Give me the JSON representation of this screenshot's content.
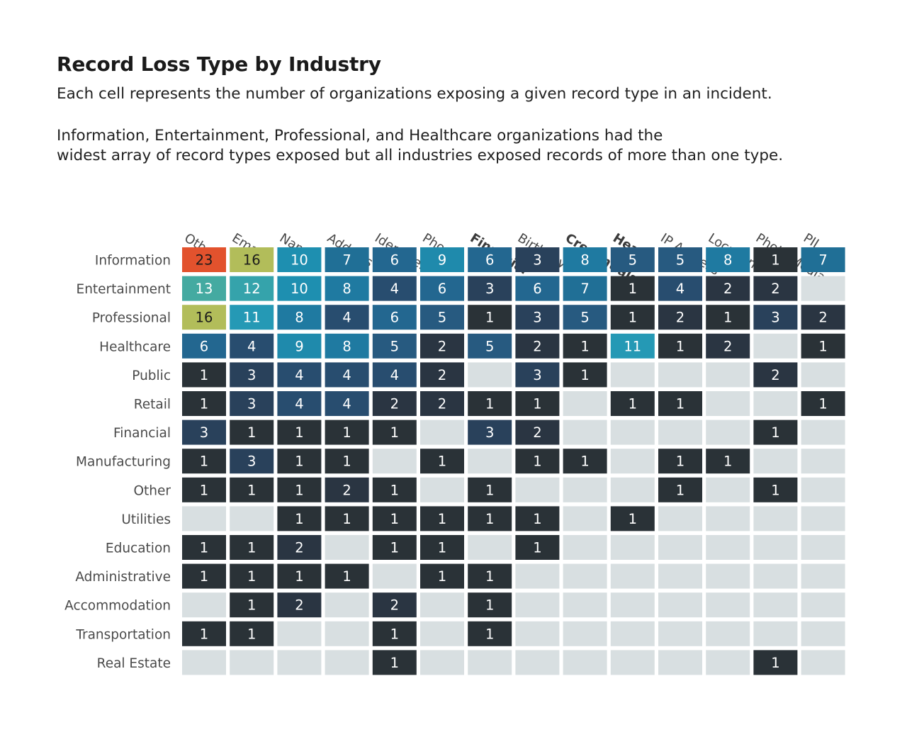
{
  "title": "Record Loss Type by Industry",
  "subtitle": "Each cell represents the number of organizations exposing a given record type in an incident.",
  "note": [
    "Information, Entertainment, Professional, and Healthcare organizations had the",
    "widest array of record types exposed but all industries exposed records of more than one type."
  ],
  "chart_data": {
    "type": "heatmap",
    "columns": [
      "Other",
      "Email",
      "Name",
      "Address",
      "Identifier",
      "Phone",
      "Financial",
      "Birthday",
      "Credentials",
      "Health",
      "IP Address",
      "Location",
      "Photo/Media",
      "PII"
    ],
    "bold_columns": [
      "Financial",
      "Credentials",
      "Health"
    ],
    "rows": [
      "Information",
      "Entertainment",
      "Professional",
      "Healthcare",
      "Public",
      "Retail",
      "Financial",
      "Manufacturing",
      "Other",
      "Utilities",
      "Education",
      "Administrative",
      "Accommodation",
      "Transportation",
      "Real Estate"
    ],
    "values": [
      [
        23,
        16,
        10,
        7,
        6,
        9,
        6,
        3,
        8,
        5,
        5,
        8,
        1,
        7
      ],
      [
        13,
        12,
        10,
        8,
        4,
        6,
        3,
        6,
        7,
        1,
        4,
        2,
        2,
        null
      ],
      [
        16,
        11,
        8,
        4,
        6,
        5,
        1,
        3,
        5,
        1,
        2,
        1,
        3,
        2
      ],
      [
        6,
        4,
        9,
        8,
        5,
        2,
        5,
        2,
        1,
        11,
        1,
        2,
        null,
        1
      ],
      [
        1,
        3,
        4,
        4,
        4,
        2,
        null,
        3,
        1,
        null,
        null,
        null,
        2,
        null
      ],
      [
        1,
        3,
        4,
        4,
        2,
        2,
        1,
        1,
        null,
        1,
        1,
        null,
        null,
        1
      ],
      [
        3,
        1,
        1,
        1,
        1,
        null,
        3,
        2,
        null,
        null,
        null,
        null,
        1,
        null
      ],
      [
        1,
        3,
        1,
        1,
        null,
        1,
        null,
        1,
        1,
        null,
        1,
        1,
        null,
        null
      ],
      [
        1,
        1,
        1,
        2,
        1,
        null,
        1,
        null,
        null,
        null,
        1,
        null,
        1,
        null
      ],
      [
        null,
        null,
        1,
        1,
        1,
        1,
        1,
        1,
        null,
        1,
        null,
        null,
        null,
        null
      ],
      [
        1,
        1,
        2,
        null,
        1,
        1,
        null,
        1,
        null,
        null,
        null,
        null,
        null,
        null
      ],
      [
        1,
        1,
        1,
        1,
        null,
        1,
        1,
        null,
        null,
        null,
        null,
        null,
        null,
        null
      ],
      [
        null,
        1,
        2,
        null,
        2,
        null,
        1,
        null,
        null,
        null,
        null,
        null,
        null,
        null
      ],
      [
        1,
        1,
        null,
        null,
        1,
        null,
        1,
        null,
        null,
        null,
        null,
        null,
        null,
        null
      ],
      [
        null,
        null,
        null,
        null,
        1,
        null,
        null,
        null,
        null,
        null,
        null,
        null,
        1,
        null
      ]
    ],
    "empty_color": "#d8dfe1",
    "color_scale": {
      "1": "#2a3237",
      "2": "#2a3542",
      "3": "#29415b",
      "4": "#284d6f",
      "5": "#275a80",
      "6": "#236790",
      "7": "#206f96",
      "8": "#1f7aa1",
      "9": "#1f8aac",
      "10": "#1e8fb0",
      "11": "#2599b5",
      "12": "#35a3ab",
      "13": "#44aaa1",
      "16": "#b2bd5a",
      "23": "#e2522d"
    },
    "dark_text_values": [
      16,
      23
    ]
  }
}
